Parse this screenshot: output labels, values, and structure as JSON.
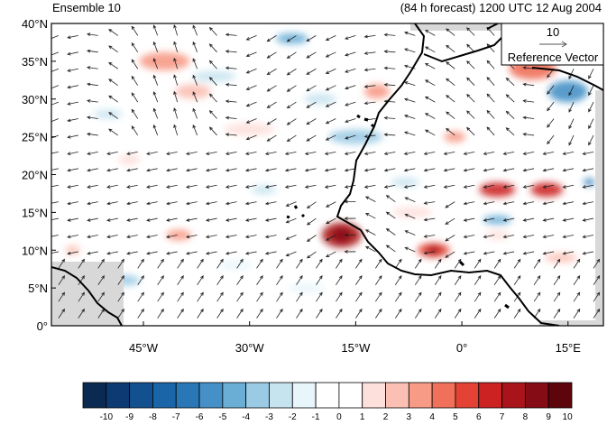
{
  "titles": {
    "left": "Ensemble 10",
    "right": "(84 h forecast) 1200 UTC 12 Aug 2004"
  },
  "reference_vector": {
    "value": "10",
    "label": "Reference Vector"
  },
  "axes": {
    "lat_ticks": [
      "40°N",
      "35°N",
      "30°N",
      "25°N",
      "20°N",
      "15°N",
      "10°N",
      "5°N",
      "0°"
    ],
    "lon_ticks": [
      "45°W",
      "30°W",
      "15°W",
      "0°",
      "15°E"
    ],
    "lon_range": [
      -58,
      20
    ],
    "lat_range": [
      0,
      40
    ]
  },
  "colorbar": {
    "labels": [
      "-10",
      "-9",
      "-8",
      "-7",
      "-6",
      "-5",
      "-4",
      "-3",
      "-2",
      "-1",
      "0",
      "1",
      "2",
      "3",
      "4",
      "5",
      "6",
      "7",
      "8",
      "9",
      "10"
    ],
    "colors": [
      "#0b2a52",
      "#0d3a73",
      "#12508f",
      "#1a64a8",
      "#2a77b8",
      "#4591c7",
      "#6aaed6",
      "#9bcbe4",
      "#c6e3f0",
      "#e8f5fb",
      "#ffffff",
      "#ffffff",
      "#fde0dc",
      "#fbbfb3",
      "#f79a86",
      "#f0705a",
      "#e34234",
      "#cc2221",
      "#a8141a",
      "#850c14",
      "#5e050b"
    ]
  },
  "colors": {
    "land": "#d3d3d3",
    "coast": "#000000"
  }
}
